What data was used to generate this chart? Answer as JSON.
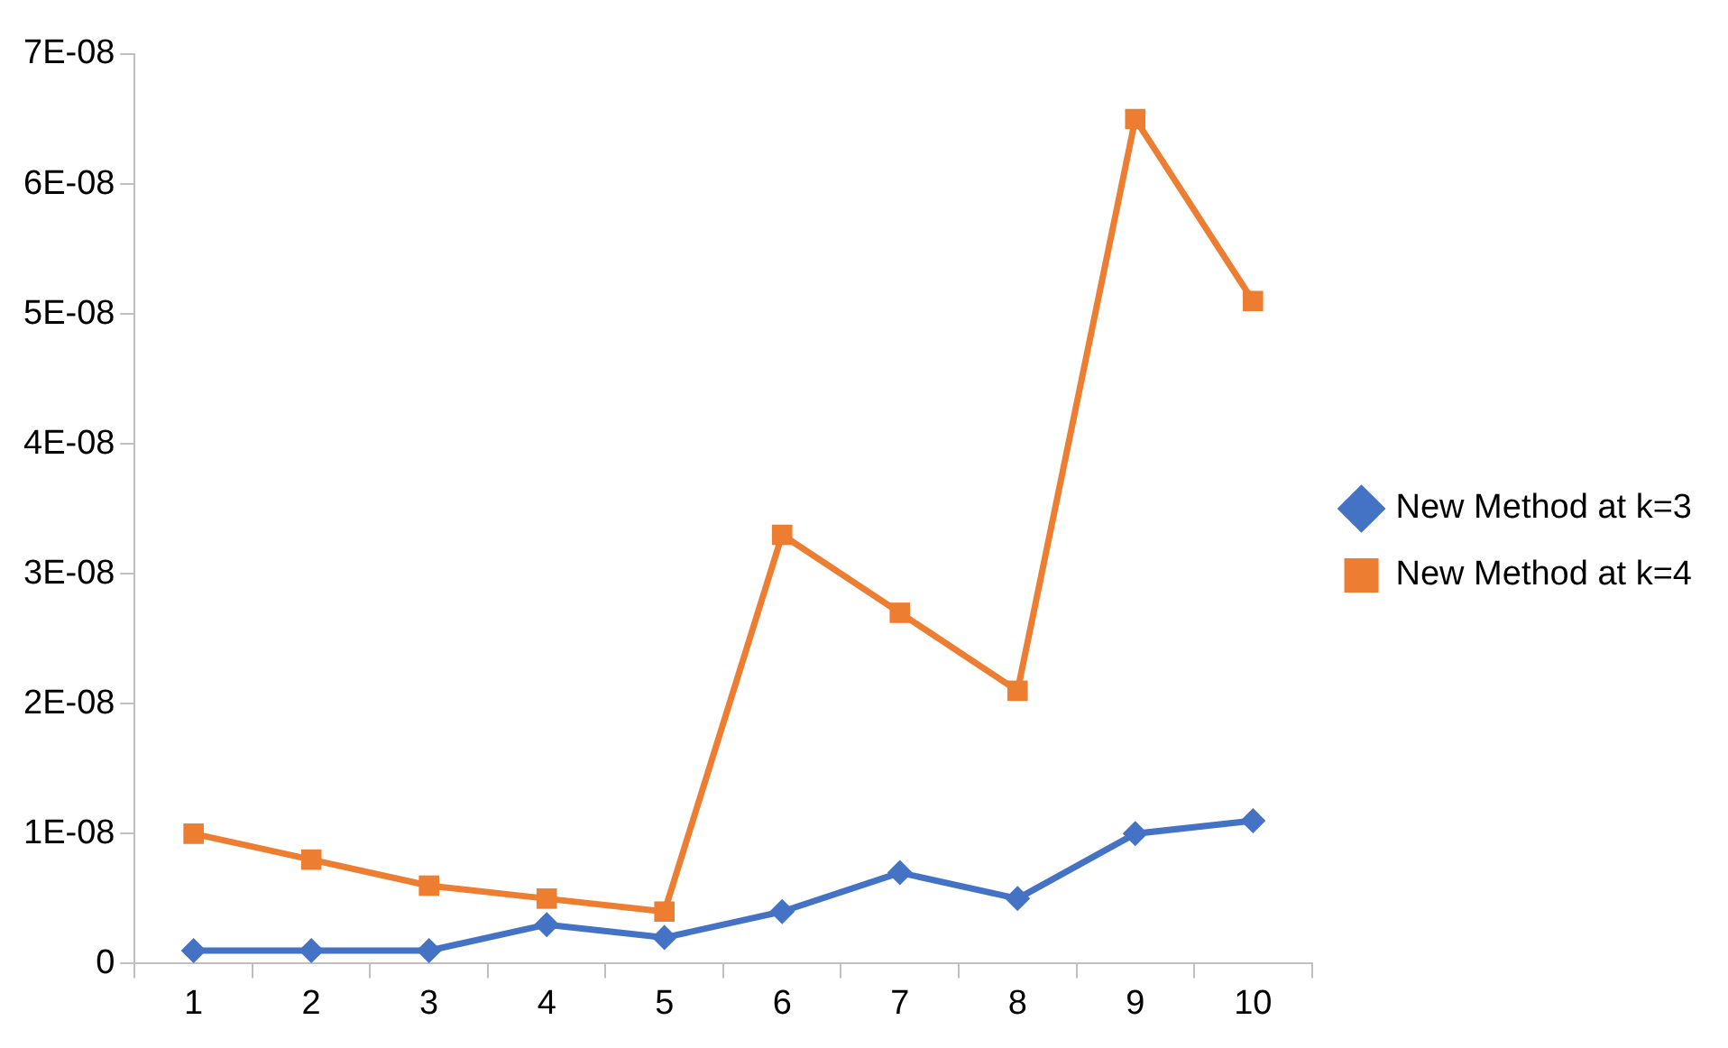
{
  "chart_data": {
    "type": "line",
    "categories": [
      "1",
      "2",
      "3",
      "4",
      "5",
      "6",
      "7",
      "8",
      "9",
      "10"
    ],
    "series": [
      {
        "name": "New Method at k=3",
        "color": "#4472c4",
        "marker": "diamond",
        "values": [
          1e-09,
          1e-09,
          1e-09,
          3e-09,
          2e-09,
          4e-09,
          7e-09,
          5e-09,
          1e-08,
          1.1e-08
        ]
      },
      {
        "name": "New Method at k=4",
        "color": "#ed7d31",
        "marker": "square",
        "values": [
          1e-08,
          8e-09,
          6e-09,
          5e-09,
          4e-09,
          3.3e-08,
          2.7e-08,
          2.1e-08,
          6.5e-08,
          5.1e-08
        ]
      }
    ],
    "ylim": [
      0,
      7e-08
    ],
    "yticks": [
      0,
      {
        "value": 1e-08,
        "label": "1E-08"
      },
      {
        "value": 2e-08,
        "label": "2E-08"
      },
      {
        "value": 3e-08,
        "label": "3E-08"
      },
      {
        "value": 4e-08,
        "label": "4E-08"
      },
      {
        "value": 5e-08,
        "label": "5E-08"
      },
      {
        "value": 6e-08,
        "label": "6E-08"
      },
      {
        "value": 7e-08,
        "label": "7E-08"
      }
    ],
    "grid": false,
    "legend": "right",
    "line_style": "solid"
  }
}
